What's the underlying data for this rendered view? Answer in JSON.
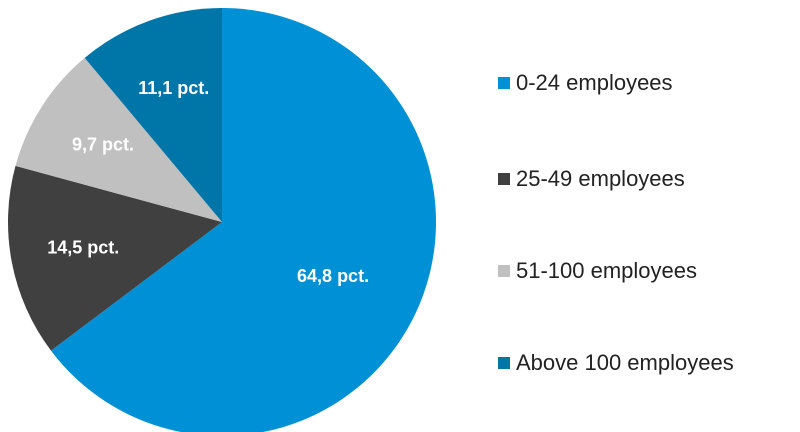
{
  "chart_data": {
    "type": "pie",
    "categories": [
      "0-24 employees",
      "25-49 employees",
      "51-100 employees",
      "Above 100 employees"
    ],
    "values": [
      64.8,
      14.5,
      9.7,
      11.1
    ],
    "data_labels": [
      "64,8 pct.",
      "14,5 pct.",
      "9,7 pct.",
      "11,1 pct."
    ],
    "colors": [
      "#0090d5",
      "#404040",
      "#c0c0c0",
      "#0076a8"
    ],
    "start": "12 o'clock",
    "direction": "clockwise",
    "legend_position": "right"
  },
  "legend": {
    "items": [
      {
        "label": "0-24 employees",
        "color": "#0090d5"
      },
      {
        "label": "25-49 employees",
        "color": "#404040"
      },
      {
        "label": "51-100 employees",
        "color": "#c0c0c0"
      },
      {
        "label": "Above 100 employees",
        "color": "#0076a8"
      }
    ]
  }
}
